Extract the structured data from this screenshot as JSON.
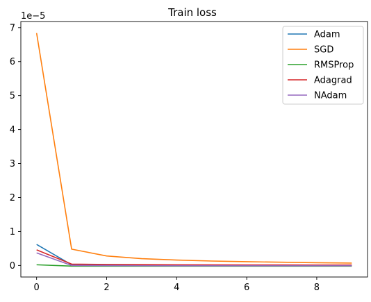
{
  "chart_data": {
    "type": "line",
    "title": "Train loss",
    "xlabel": "",
    "ylabel": "",
    "x": [
      0,
      1,
      2,
      3,
      4,
      5,
      6,
      7,
      8,
      9
    ],
    "xlim": [
      -0.45,
      9.45
    ],
    "ylim": [
      -0.34,
      7.18
    ],
    "x_ticks": [
      "0",
      "2",
      "4",
      "6",
      "8"
    ],
    "y_ticks": [
      "0",
      "1",
      "2",
      "3",
      "4",
      "5",
      "6",
      "7"
    ],
    "y_offset_text": "1e−5",
    "grid": false,
    "legend_position": "top-right",
    "series": [
      {
        "name": "Adam",
        "color": "#1f77b4",
        "values": [
          0.62,
          0.02,
          0.015,
          0.012,
          0.01,
          0.008,
          0.007,
          0.006,
          0.005,
          0.005
        ]
      },
      {
        "name": "SGD",
        "color": "#ff7f0e",
        "values": [
          6.84,
          0.48,
          0.28,
          0.2,
          0.16,
          0.13,
          0.11,
          0.095,
          0.08,
          0.07
        ]
      },
      {
        "name": "RMSProp",
        "color": "#2ca02c",
        "values": [
          0.02,
          -0.02,
          -0.02,
          -0.02,
          -0.02,
          -0.02,
          -0.02,
          -0.02,
          -0.02,
          -0.02
        ]
      },
      {
        "name": "Adagrad",
        "color": "#d62728",
        "values": [
          0.46,
          0.04,
          0.03,
          0.025,
          0.02,
          0.017,
          0.015,
          0.013,
          0.012,
          0.011
        ]
      },
      {
        "name": "NAdam",
        "color": "#9467bd",
        "values": [
          0.37,
          0.0,
          -0.005,
          -0.008,
          -0.01,
          -0.01,
          -0.01,
          -0.01,
          -0.01,
          -0.01
        ]
      }
    ]
  }
}
